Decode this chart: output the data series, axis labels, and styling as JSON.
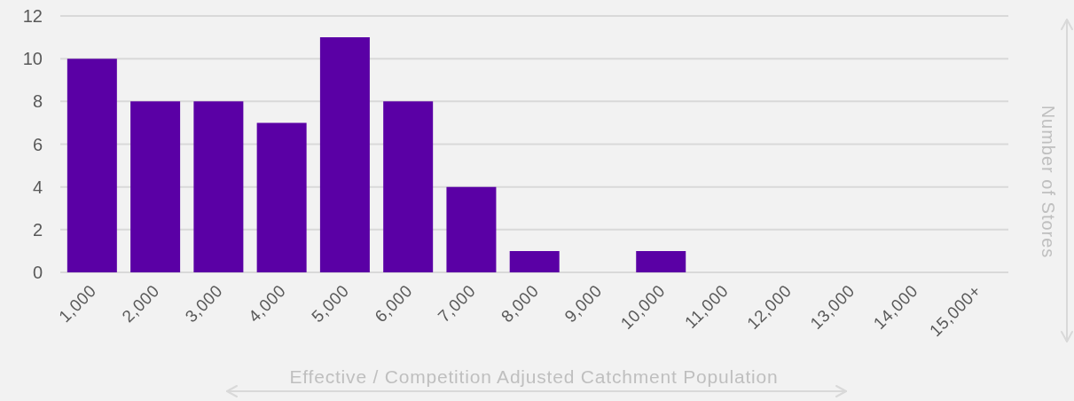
{
  "chart_data": {
    "type": "bar",
    "xlabel": "Effective / Competition Adjusted Catchment Population",
    "ylabel": "Number of Stores",
    "categories": [
      "1,000",
      "2,000",
      "3,000",
      "4,000",
      "5,000",
      "6,000",
      "7,000",
      "8,000",
      "9,000",
      "10,000",
      "11,000",
      "12,000",
      "13,000",
      "14,000",
      "15,000+"
    ],
    "values": [
      10,
      8,
      8,
      7,
      11,
      8,
      4,
      1,
      0,
      1,
      0,
      0,
      0,
      0,
      0
    ],
    "color": "#5a00a5",
    "ylim": [
      0,
      12
    ],
    "yticks": [
      0,
      2,
      4,
      6,
      8,
      10,
      12
    ],
    "grid": "y"
  }
}
